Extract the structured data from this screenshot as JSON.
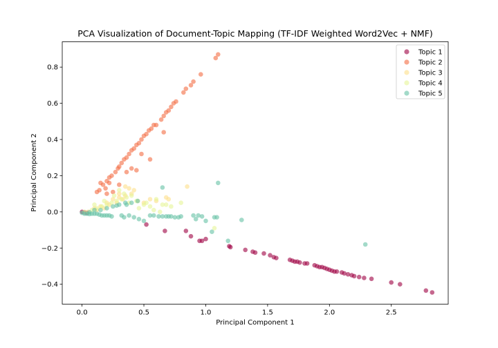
{
  "chart_data": {
    "type": "scatter",
    "title": "PCA Visualization of Document-Topic Mapping (TF-IDF Weighted Word2Vec + NMF)",
    "xlabel": "Principal Component 1",
    "ylabel": "Principal Component 2",
    "xlim": [
      -0.16,
      2.96
    ],
    "ylim": [
      -0.51,
      0.94
    ],
    "xticks": [
      0.0,
      0.5,
      1.0,
      1.5,
      2.0,
      2.5
    ],
    "xtick_labels": [
      "0.0",
      "0.5",
      "1.0",
      "1.5",
      "2.0",
      "2.5"
    ],
    "yticks": [
      -0.4,
      -0.2,
      0.0,
      0.2,
      0.4,
      0.6,
      0.8
    ],
    "ytick_labels": [
      "−0.4",
      "−0.2",
      "0.0",
      "0.2",
      "0.4",
      "0.6",
      "0.8"
    ],
    "grid": false,
    "legend": "top-right",
    "point_alpha": 0.6,
    "series": [
      {
        "name": "Topic 1",
        "color": "#9e0142",
        "points": [
          [
            0.0,
            0.0
          ],
          [
            0.02,
            -0.003
          ],
          [
            0.04,
            -0.005
          ],
          [
            0.52,
            -0.07
          ],
          [
            0.67,
            -0.105
          ],
          [
            0.84,
            -0.105
          ],
          [
            0.88,
            -0.135
          ],
          [
            0.95,
            -0.16
          ],
          [
            0.97,
            -0.16
          ],
          [
            1.0,
            -0.15
          ],
          [
            1.19,
            -0.19
          ],
          [
            1.2,
            -0.195
          ],
          [
            1.32,
            -0.21
          ],
          [
            1.38,
            -0.22
          ],
          [
            1.4,
            -0.225
          ],
          [
            1.47,
            -0.23
          ],
          [
            1.52,
            -0.24
          ],
          [
            1.55,
            -0.25
          ],
          [
            1.57,
            -0.255
          ],
          [
            1.68,
            -0.265
          ],
          [
            1.7,
            -0.27
          ],
          [
            1.72,
            -0.275
          ],
          [
            1.74,
            -0.275
          ],
          [
            1.76,
            -0.28
          ],
          [
            1.8,
            -0.285
          ],
          [
            1.82,
            -0.285
          ],
          [
            1.88,
            -0.295
          ],
          [
            1.9,
            -0.3
          ],
          [
            1.92,
            -0.305
          ],
          [
            1.94,
            -0.305
          ],
          [
            1.96,
            -0.31
          ],
          [
            1.98,
            -0.315
          ],
          [
            2.0,
            -0.32
          ],
          [
            2.02,
            -0.325
          ],
          [
            2.04,
            -0.33
          ],
          [
            2.06,
            -0.33
          ],
          [
            2.1,
            -0.335
          ],
          [
            2.12,
            -0.34
          ],
          [
            2.15,
            -0.345
          ],
          [
            2.18,
            -0.35
          ],
          [
            2.2,
            -0.355
          ],
          [
            2.24,
            -0.36
          ],
          [
            2.28,
            -0.365
          ],
          [
            2.34,
            -0.37
          ],
          [
            2.5,
            -0.39
          ],
          [
            2.57,
            -0.4
          ],
          [
            2.78,
            -0.435
          ],
          [
            2.83,
            -0.445
          ]
        ]
      },
      {
        "name": "Topic 2",
        "color": "#f46d43",
        "points": [
          [
            0.12,
            0.11
          ],
          [
            0.14,
            0.12
          ],
          [
            0.17,
            0.15
          ],
          [
            0.2,
            0.17
          ],
          [
            0.22,
            0.19
          ],
          [
            0.24,
            0.2
          ],
          [
            0.27,
            0.22
          ],
          [
            0.29,
            0.24
          ],
          [
            0.3,
            0.25
          ],
          [
            0.32,
            0.27
          ],
          [
            0.34,
            0.29
          ],
          [
            0.36,
            0.3
          ],
          [
            0.38,
            0.32
          ],
          [
            0.4,
            0.34
          ],
          [
            0.42,
            0.35
          ],
          [
            0.44,
            0.37
          ],
          [
            0.46,
            0.38
          ],
          [
            0.48,
            0.4
          ],
          [
            0.5,
            0.42
          ],
          [
            0.52,
            0.43
          ],
          [
            0.54,
            0.45
          ],
          [
            0.56,
            0.46
          ],
          [
            0.58,
            0.48
          ],
          [
            0.6,
            0.48
          ],
          [
            0.64,
            0.51
          ],
          [
            0.66,
            0.53
          ],
          [
            0.68,
            0.55
          ],
          [
            0.7,
            0.56
          ],
          [
            0.72,
            0.58
          ],
          [
            0.74,
            0.6
          ],
          [
            0.76,
            0.61
          ],
          [
            0.82,
            0.66
          ],
          [
            0.84,
            0.68
          ],
          [
            0.88,
            0.7
          ],
          [
            0.9,
            0.72
          ],
          [
            0.96,
            0.76
          ],
          [
            1.08,
            0.85
          ],
          [
            1.1,
            0.87
          ],
          [
            0.55,
            0.29
          ],
          [
            0.48,
            0.32
          ],
          [
            0.2,
            0.1
          ],
          [
            0.25,
            0.11
          ],
          [
            0.3,
            0.15
          ],
          [
            0.22,
            0.16
          ],
          [
            0.19,
            0.13
          ],
          [
            0.15,
            0.16
          ],
          [
            0.36,
            0.22
          ],
          [
            0.4,
            0.24
          ],
          [
            0.44,
            0.23
          ],
          [
            0.66,
            0.44
          ]
        ]
      },
      {
        "name": "Topic 3",
        "color": "#fee08b",
        "points": [
          [
            0.05,
            0.0
          ],
          [
            0.1,
            0.02
          ],
          [
            0.15,
            0.03
          ],
          [
            0.2,
            0.05
          ],
          [
            0.25,
            0.07
          ],
          [
            0.3,
            0.08
          ],
          [
            0.35,
            0.09
          ],
          [
            0.4,
            0.1
          ],
          [
            0.33,
            0.07
          ],
          [
            0.28,
            0.05
          ],
          [
            0.18,
            0.02
          ],
          [
            0.45,
            0.06
          ],
          [
            0.5,
            0.05
          ],
          [
            0.6,
            0.06
          ],
          [
            0.68,
            0.08
          ],
          [
            0.7,
            0.07
          ],
          [
            0.85,
            0.14
          ],
          [
            0.35,
            0.14
          ],
          [
            0.38,
            0.13
          ],
          [
            0.42,
            0.12
          ],
          [
            0.12,
            0.01
          ],
          [
            0.22,
            0.04
          ],
          [
            0.3,
            0.1
          ],
          [
            0.55,
            0.07
          ]
        ]
      },
      {
        "name": "Topic 4",
        "color": "#e6f598",
        "points": [
          [
            0.02,
            0.0
          ],
          [
            0.08,
            0.01
          ],
          [
            0.12,
            0.02
          ],
          [
            0.16,
            0.03
          ],
          [
            0.2,
            0.04
          ],
          [
            0.24,
            0.05
          ],
          [
            0.28,
            0.06
          ],
          [
            0.32,
            0.07
          ],
          [
            0.36,
            0.08
          ],
          [
            0.4,
            0.09
          ],
          [
            0.44,
            0.06
          ],
          [
            0.5,
            0.04
          ],
          [
            0.52,
            0.05
          ],
          [
            0.55,
            0.03
          ],
          [
            0.6,
            0.07
          ],
          [
            0.65,
            0.04
          ],
          [
            0.68,
            0.04
          ],
          [
            0.72,
            0.03
          ],
          [
            0.8,
            0.05
          ],
          [
            1.07,
            -0.09
          ],
          [
            0.3,
            0.12
          ],
          [
            0.34,
            0.1
          ],
          [
            0.26,
            0.09
          ],
          [
            0.18,
            0.06
          ],
          [
            0.1,
            0.04
          ],
          [
            0.38,
            0.05
          ],
          [
            0.46,
            0.02
          ],
          [
            0.58,
            0.01
          ],
          [
            0.63,
            0.0
          ]
        ]
      },
      {
        "name": "Topic 5",
        "color": "#66c2a5",
        "points": [
          [
            0.0,
            -0.005
          ],
          [
            0.02,
            -0.01
          ],
          [
            0.04,
            -0.01
          ],
          [
            0.06,
            -0.012
          ],
          [
            0.08,
            -0.01
          ],
          [
            0.1,
            -0.01
          ],
          [
            0.12,
            -0.01
          ],
          [
            0.14,
            -0.015
          ],
          [
            0.16,
            -0.02
          ],
          [
            0.18,
            -0.02
          ],
          [
            0.2,
            -0.02
          ],
          [
            0.22,
            -0.02
          ],
          [
            0.24,
            -0.025
          ],
          [
            0.1,
            0.01
          ],
          [
            0.15,
            0.01
          ],
          [
            0.2,
            0.02
          ],
          [
            0.25,
            0.03
          ],
          [
            0.3,
            0.04
          ],
          [
            0.35,
            0.05
          ],
          [
            0.4,
            0.05
          ],
          [
            0.45,
            0.06
          ],
          [
            0.32,
            -0.02
          ],
          [
            0.34,
            -0.03
          ],
          [
            0.38,
            -0.02
          ],
          [
            0.42,
            -0.03
          ],
          [
            0.46,
            -0.04
          ],
          [
            0.5,
            -0.05
          ],
          [
            0.55,
            -0.02
          ],
          [
            0.58,
            -0.02
          ],
          [
            0.62,
            -0.025
          ],
          [
            0.65,
            -0.025
          ],
          [
            0.68,
            -0.025
          ],
          [
            0.7,
            -0.025
          ],
          [
            0.72,
            -0.025
          ],
          [
            0.75,
            -0.03
          ],
          [
            0.78,
            -0.03
          ],
          [
            0.8,
            -0.025
          ],
          [
            0.65,
            0.135
          ],
          [
            0.92,
            -0.04
          ],
          [
            0.9,
            -0.02
          ],
          [
            0.94,
            -0.02
          ],
          [
            0.97,
            -0.025
          ],
          [
            1.0,
            -0.05
          ],
          [
            1.05,
            -0.11
          ],
          [
            1.07,
            -0.03
          ],
          [
            1.09,
            -0.03
          ],
          [
            1.1,
            0.16
          ],
          [
            1.18,
            -0.16
          ],
          [
            1.29,
            -0.045
          ],
          [
            2.29,
            -0.18
          ],
          [
            0.06,
            -0.002
          ],
          [
            0.28,
            0.035
          ],
          [
            0.36,
            0.04
          ]
        ]
      }
    ]
  }
}
